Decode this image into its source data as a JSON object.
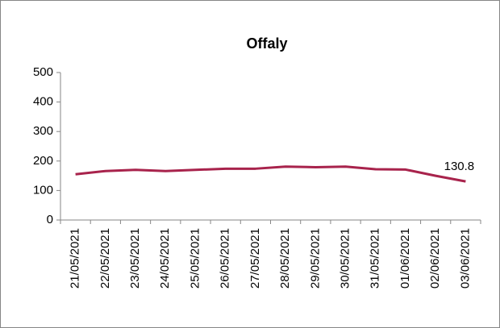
{
  "chart_data": {
    "type": "line",
    "title": "Offaly",
    "categories": [
      "21/05/2021",
      "22/05/2021",
      "23/05/2021",
      "24/05/2021",
      "25/05/2021",
      "26/05/2021",
      "27/05/2021",
      "28/05/2021",
      "29/05/2021",
      "30/05/2021",
      "31/05/2021",
      "01/06/2021",
      "02/06/2021",
      "03/06/2021"
    ],
    "values": [
      155,
      166,
      170,
      166,
      170,
      174,
      174,
      181,
      179,
      181,
      172,
      171,
      150,
      130.8
    ],
    "color": "#a8234c",
    "ylim": [
      0,
      500
    ],
    "yticks": [
      0,
      100,
      200,
      300,
      400,
      500
    ],
    "grid": false
  }
}
